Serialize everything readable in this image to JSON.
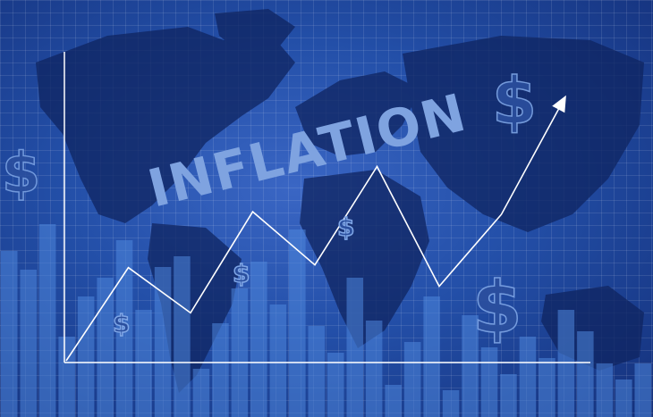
{
  "headline": "INFLATION",
  "dollar_symbol": "$",
  "colors": {
    "background": "#234fa8",
    "map": "#0f2460",
    "bars": "#4f86dc",
    "line": "#ffffff",
    "headline": "#7fa3e0"
  },
  "bars": [
    0.62,
    0.55,
    0.72,
    0.3,
    0.45,
    0.52,
    0.66,
    0.4,
    0.56,
    0.6,
    0.18,
    0.35,
    0.48,
    0.58,
    0.42,
    0.7,
    0.34,
    0.24,
    0.52,
    0.36,
    0.12,
    0.28,
    0.45,
    0.1,
    0.38,
    0.26,
    0.16,
    0.3,
    0.22,
    0.4,
    0.32,
    0.2,
    0.14,
    0.2
  ],
  "trend_line": [
    0,
    0.35,
    0.18,
    0.56,
    0.36,
    0.73,
    0.28,
    0.55,
    0.98
  ]
}
